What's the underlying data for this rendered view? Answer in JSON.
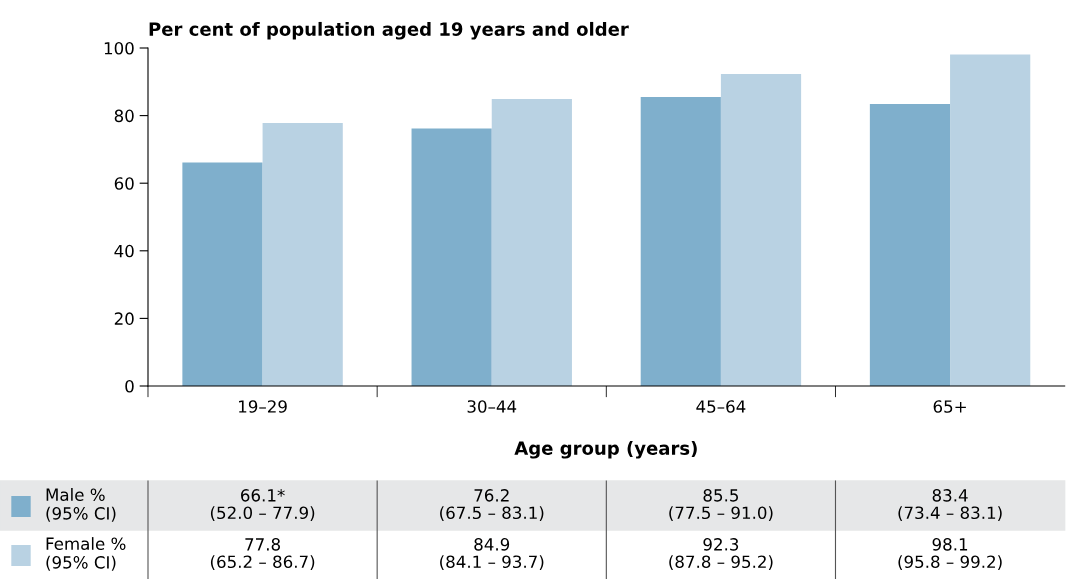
{
  "chart_data": {
    "type": "bar",
    "ylabel": "Per cent of population aged 19 years and older",
    "xlabel": "Age group (years)",
    "categories": [
      "19–29",
      "30–44",
      "45–64",
      "65+"
    ],
    "series": [
      {
        "name": "Male %\n(95% CI)",
        "color": "#7fafcc",
        "values": [
          66.1,
          76.2,
          85.5,
          83.4
        ],
        "value_labels": [
          "66.1*\n(52.0 – 77.9)",
          "76.2\n(67.5 – 83.1)",
          "85.5\n(77.5 – 91.0)",
          "83.4\n(73.4 – 83.1)"
        ]
      },
      {
        "name": "Female %\n(95% CI)",
        "color": "#b9d2e3",
        "values": [
          77.8,
          84.9,
          92.3,
          98.1
        ],
        "value_labels": [
          "77.8\n(65.2 – 86.7)",
          "84.9\n(84.1 – 93.7)",
          "92.3\n(87.8 – 95.2)",
          "98.1\n(95.8 – 99.2)"
        ]
      }
    ],
    "ylim": [
      0,
      100
    ],
    "yticks": [
      0,
      20,
      40,
      60,
      80,
      100
    ],
    "grid": false,
    "legend": "bottom left"
  }
}
